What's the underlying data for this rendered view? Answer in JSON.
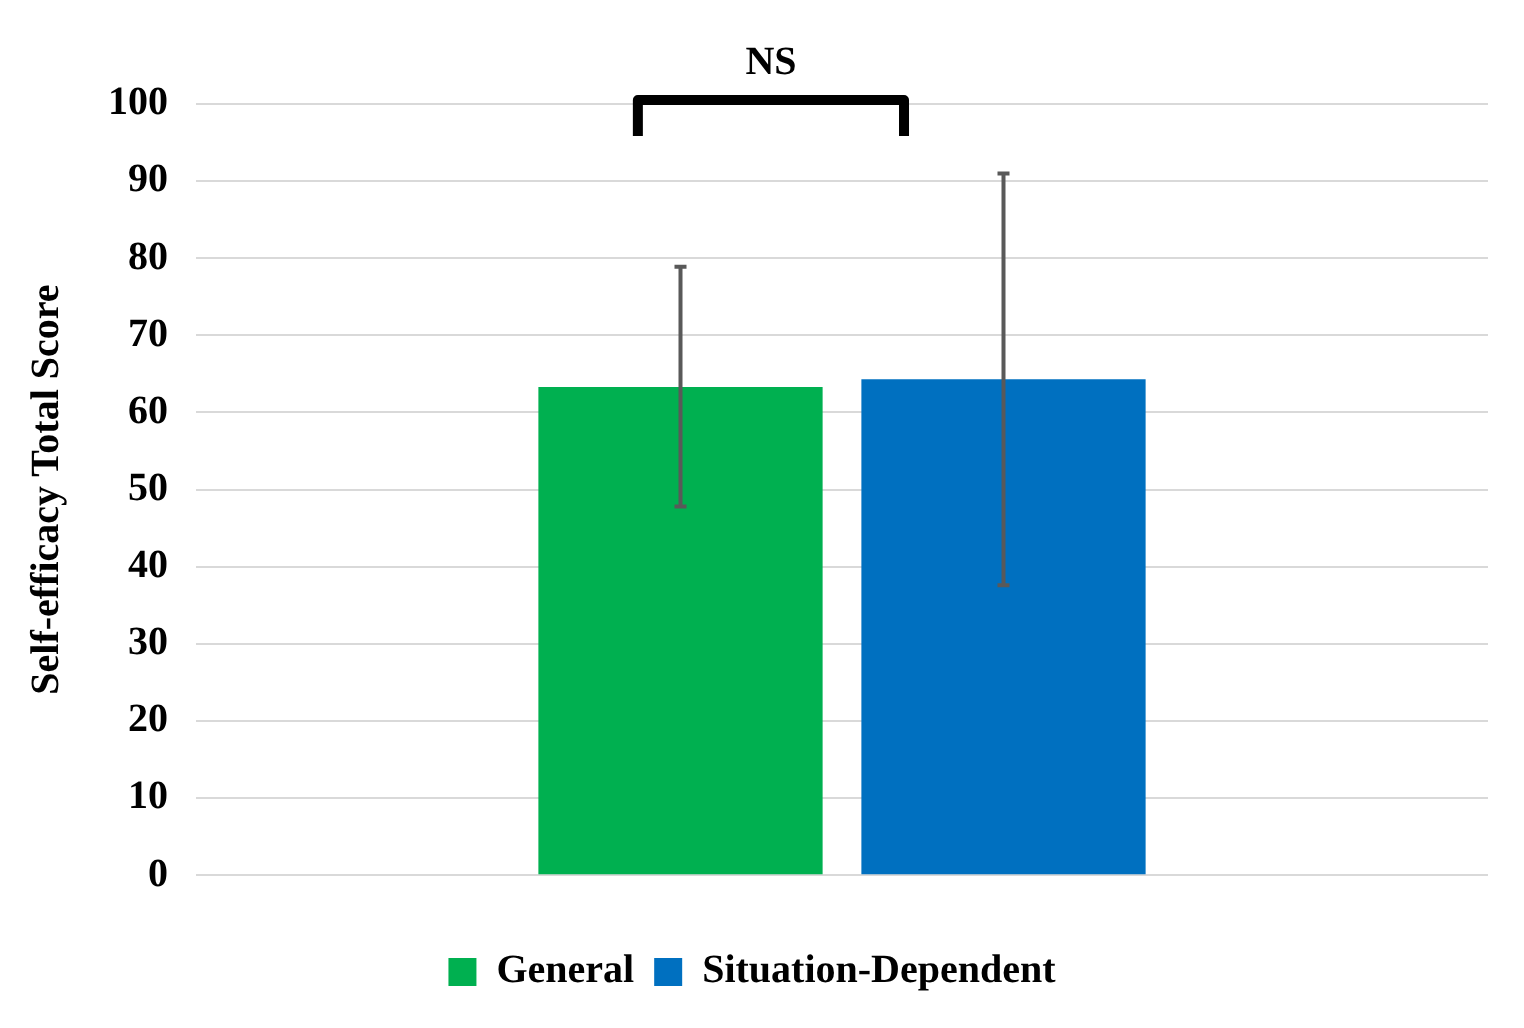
{
  "chart_data": {
    "type": "bar",
    "ylabel": "Self-efficacy Total Score",
    "categories": [
      null
    ],
    "series": [
      {
        "name": "General",
        "color": "#00b050",
        "values": [
          63.3
        ],
        "errors": [
          [
            47.8,
            78.9
          ]
        ]
      },
      {
        "name": "Situation-Dependent",
        "color": "#0070c0",
        "values": [
          64.3
        ],
        "errors": [
          [
            37.6,
            91.0
          ]
        ]
      }
    ],
    "ylim": [
      0,
      100
    ],
    "yticks": [
      0,
      10,
      20,
      30,
      40,
      50,
      60,
      70,
      80,
      90,
      100
    ],
    "grid": "y",
    "legend": "bottom",
    "annotations": [
      "NS"
    ]
  }
}
